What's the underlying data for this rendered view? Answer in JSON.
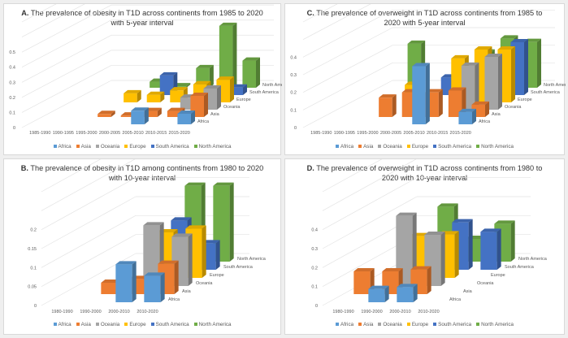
{
  "colors": {
    "Africa": "#5b9bd5",
    "Asia": "#ed7d31",
    "Oceania": "#a5a5a5",
    "Europe": "#ffc000",
    "South America": "#4472c4",
    "North America": "#70ad47"
  },
  "chart_data": [
    {
      "id": "A",
      "type": "bar",
      "subtype": "3d-column",
      "title_prefix": "A.",
      "title": "The prevalence of obesity in T1D across continents from 1985 to 2020 with 5-year interval",
      "categories": [
        "1985-1990",
        "1990-1995",
        "1995-2000",
        "2000-2005",
        "2005-2010",
        "2010-2015",
        "2015-2020"
      ],
      "depth_labels": [
        "Africa",
        "Asia",
        "Oceania",
        "Europe",
        "South America",
        "North America"
      ],
      "yticks": [
        "0",
        "0.1",
        "0.2",
        "0.3",
        "0.4",
        "0.5"
      ],
      "ylim": [
        0,
        0.7
      ],
      "grid": true,
      "legend": "bottom",
      "series": [
        {
          "name": "Africa",
          "values": [
            null,
            null,
            null,
            null,
            0.09,
            null,
            0.07
          ]
        },
        {
          "name": "Asia",
          "values": [
            null,
            null,
            0.02,
            0.01,
            0.04,
            0.04,
            0.14
          ]
        },
        {
          "name": "Oceania",
          "values": [
            null,
            null,
            null,
            null,
            null,
            0.08,
            0.14
          ]
        },
        {
          "name": "Europe",
          "values": [
            null,
            null,
            0.06,
            0.05,
            0.08,
            0.12,
            0.15
          ]
        },
        {
          "name": "South America",
          "values": [
            null,
            null,
            null,
            0.13,
            null,
            null,
            0.05
          ]
        },
        {
          "name": "North America",
          "values": [
            null,
            null,
            0.04,
            0.01,
            0.13,
            0.41,
            0.18
          ]
        }
      ]
    },
    {
      "id": "C",
      "type": "bar",
      "subtype": "3d-column",
      "title_prefix": "C.",
      "title": "The prevalence of overweight in T1D across continents from 1985 to 2020 with 5-year interval",
      "categories": [
        "1985-1990",
        "1990-1995",
        "1995-2000",
        "2000-2005",
        "2005-2010",
        "2010-2015",
        "2015-2020"
      ],
      "depth_labels": [
        "Africa",
        "Asia",
        "Oceania",
        "Europe",
        "South America",
        "North America"
      ],
      "yticks": [
        "0",
        "0.1",
        "0.2",
        "0.3",
        "0.4"
      ],
      "ylim": [
        0,
        0.6
      ],
      "grid": true,
      "legend": "bottom",
      "series": [
        {
          "name": "Africa",
          "values": [
            null,
            null,
            null,
            null,
            0.33,
            null,
            0.07
          ]
        },
        {
          "name": "Asia",
          "values": [
            null,
            null,
            0.11,
            0.14,
            0.14,
            0.15,
            0.07
          ]
        },
        {
          "name": "Oceania",
          "values": [
            null,
            null,
            null,
            null,
            null,
            0.25,
            0.3
          ]
        },
        {
          "name": "Europe",
          "values": [
            null,
            null,
            0.1,
            null,
            0.25,
            0.3,
            0.3
          ]
        },
        {
          "name": "South America",
          "values": [
            null,
            null,
            null,
            0.1,
            null,
            null,
            0.3
          ]
        },
        {
          "name": "North America",
          "values": [
            null,
            0.25,
            null,
            null,
            0.2,
            0.28,
            0.26
          ]
        }
      ]
    },
    {
      "id": "B",
      "type": "bar",
      "subtype": "3d-column",
      "title_prefix": "B.",
      "title": "The prevalence of obesity in T1D among continents from 1980 to 2020 with 10-year interval",
      "categories": [
        "1980-1990",
        "1990-2000",
        "2000-2010",
        "2010-2020"
      ],
      "depth_labels": [
        "Africa",
        "Asia",
        "Oceania",
        "Europe",
        "South America",
        "North America"
      ],
      "yticks": [
        "0",
        "0.05",
        "0.1",
        "0.15",
        "0.2"
      ],
      "ylim": [
        0,
        0.3
      ],
      "grid": true,
      "legend": "bottom",
      "series": [
        {
          "name": "Africa",
          "values": [
            null,
            null,
            0.1,
            0.07
          ]
        },
        {
          "name": "Asia",
          "values": [
            null,
            0.03,
            0.04,
            0.08
          ]
        },
        {
          "name": "Oceania",
          "values": [
            null,
            null,
            0.16,
            0.13
          ]
        },
        {
          "name": "Europe",
          "values": [
            null,
            null,
            0.12,
            0.13
          ]
        },
        {
          "name": "South America",
          "values": [
            null,
            null,
            0.13,
            0.07
          ]
        },
        {
          "name": "North America",
          "values": [
            null,
            0.03,
            0.2,
            0.2
          ]
        }
      ]
    },
    {
      "id": "D",
      "type": "bar",
      "subtype": "3d-column",
      "title_prefix": "D.",
      "title": "The prevalence of overweight in T1D across continents from 1980 to 2020 with 10-year interval",
      "categories": [
        "1980-1990",
        "1990-2000",
        "2000-2010",
        "2010-2020"
      ],
      "depth_labels": [
        "Africa",
        "Asia",
        "Oceania",
        "Europe",
        "South America",
        "North America"
      ],
      "yticks": [
        "0",
        "0.1",
        "0.2",
        "0.3",
        "0.4"
      ],
      "ylim": [
        0,
        0.6
      ],
      "grid": true,
      "legend": "bottom",
      "series": [
        {
          "name": "Africa",
          "values": [
            null,
            0.07,
            0.08,
            null
          ]
        },
        {
          "name": "Asia",
          "values": [
            0.12,
            0.12,
            0.13,
            null
          ]
        },
        {
          "name": "Oceania",
          "values": [
            null,
            0.37,
            0.27,
            null
          ]
        },
        {
          "name": "Europe",
          "values": [
            null,
            0.22,
            0.23,
            null
          ]
        },
        {
          "name": "South America",
          "values": [
            null,
            0.1,
            0.25,
            0.2
          ]
        },
        {
          "name": "North America",
          "values": [
            null,
            0.29,
            0.12,
            0.2
          ]
        }
      ]
    }
  ]
}
